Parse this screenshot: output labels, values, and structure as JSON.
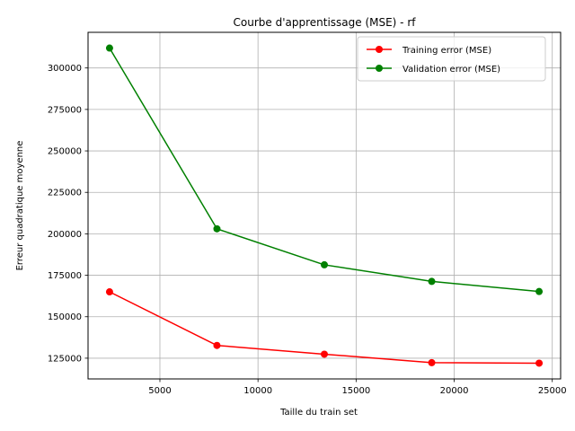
{
  "chart_data": {
    "type": "line",
    "title": "Courbe d'apprentissage (MSE) - rf",
    "xlabel": "Taille du train set",
    "ylabel": "Erreur quadratique moyenne",
    "x": [
      2433,
      7907,
      13381,
      18855,
      24329
    ],
    "xlim": [
      1337,
      25425
    ],
    "ylim": [
      112500,
      321500
    ],
    "xticks": [
      5000,
      10000,
      15000,
      20000,
      25000
    ],
    "xtick_labels": [
      "5000",
      "10000",
      "15000",
      "20000",
      "25000"
    ],
    "yticks": [
      125000,
      150000,
      175000,
      200000,
      225000,
      250000,
      275000,
      300000
    ],
    "ytick_labels": [
      "125000",
      "150000",
      "175000",
      "200000",
      "225000",
      "250000",
      "275000",
      "300000"
    ],
    "grid": true,
    "legend_position": "top-right",
    "series": [
      {
        "name": "Training error (MSE)",
        "color": "#ff0000",
        "marker": "circle",
        "values": [
          165000,
          132700,
          127400,
          122300,
          122000
        ]
      },
      {
        "name": "Validation error (MSE)",
        "color": "#008000",
        "marker": "circle",
        "values": [
          312000,
          203000,
          181300,
          171300,
          165200
        ]
      }
    ]
  }
}
